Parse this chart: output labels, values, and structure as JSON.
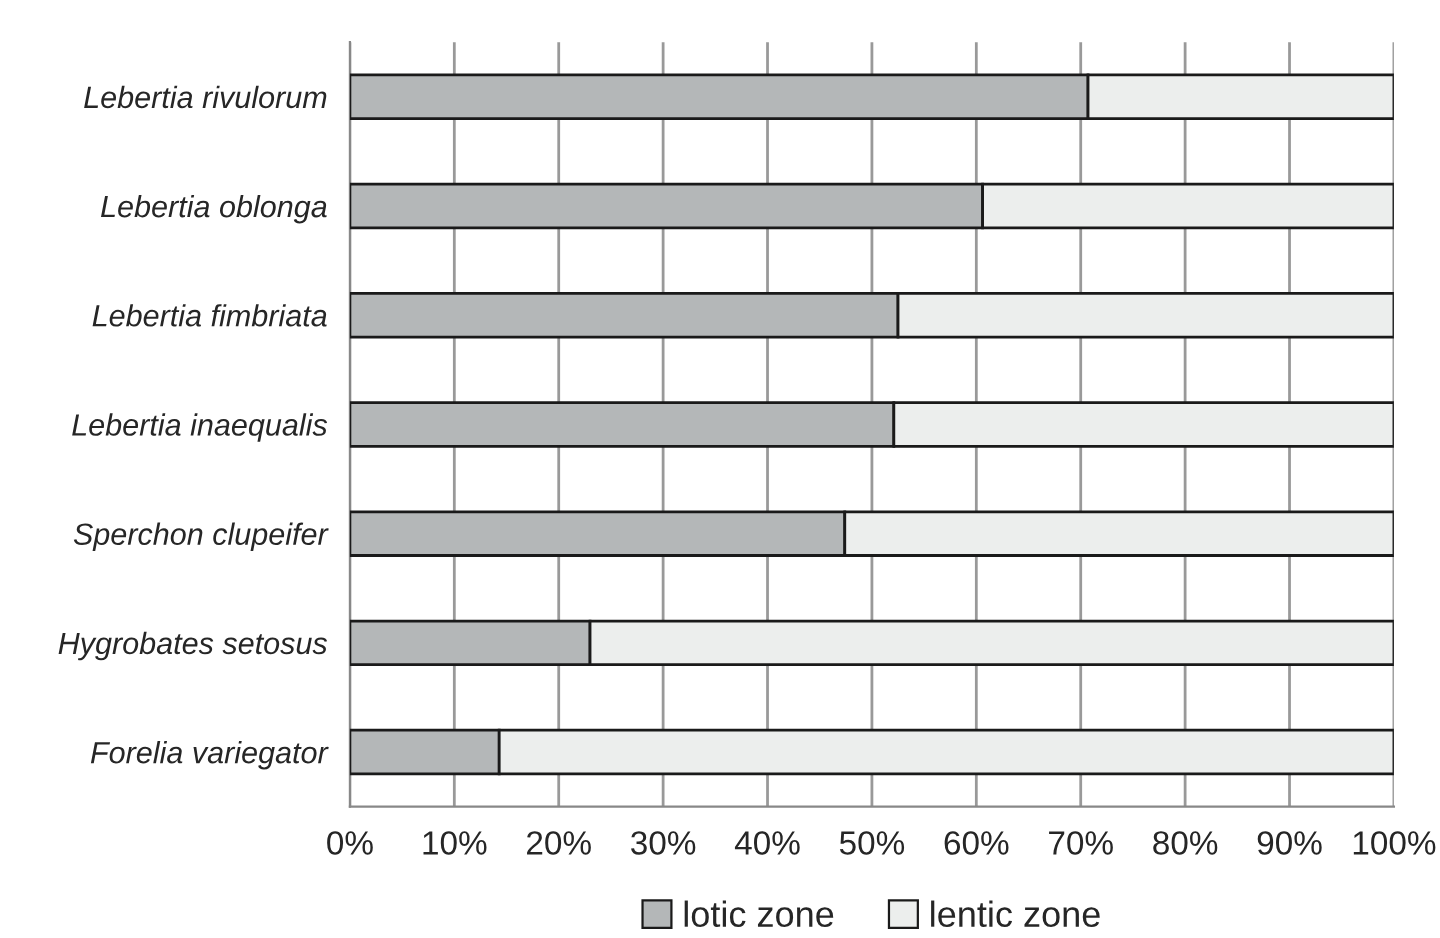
{
  "chart_data": {
    "type": "bar",
    "orientation": "horizontal",
    "stacked": true,
    "categories": [
      "Lebertia rivulorum",
      "Lebertia oblonga",
      "Lebertia fimbriata",
      "Lebertia inaequalis",
      "Sperchon clupeifer",
      "Hygrobates setosus",
      "Forelia variegator"
    ],
    "series": [
      {
        "name": "lotic zone",
        "color": "#b4b7b8",
        "values": [
          70.7,
          60.6,
          52.5,
          52.1,
          47.4,
          23.0,
          14.3
        ]
      },
      {
        "name": "lentic zone",
        "color": "#eceeed",
        "values": [
          29.3,
          39.4,
          47.5,
          47.9,
          52.6,
          77.0,
          85.7
        ]
      }
    ],
    "xlim": [
      0,
      100
    ],
    "xticks": [
      {
        "value": 0,
        "label": "0%"
      },
      {
        "value": 10,
        "label": "10%"
      },
      {
        "value": 20,
        "label": "20%"
      },
      {
        "value": 30,
        "label": "30%"
      },
      {
        "value": 40,
        "label": "40%"
      },
      {
        "value": 50,
        "label": "50%"
      },
      {
        "value": 60,
        "label": "60%"
      },
      {
        "value": 70,
        "label": "70%"
      },
      {
        "value": 80,
        "label": "80%"
      },
      {
        "value": 90,
        "label": "90%"
      },
      {
        "value": 100,
        "label": "100%"
      }
    ],
    "grid": "x",
    "legend": "bottom"
  }
}
